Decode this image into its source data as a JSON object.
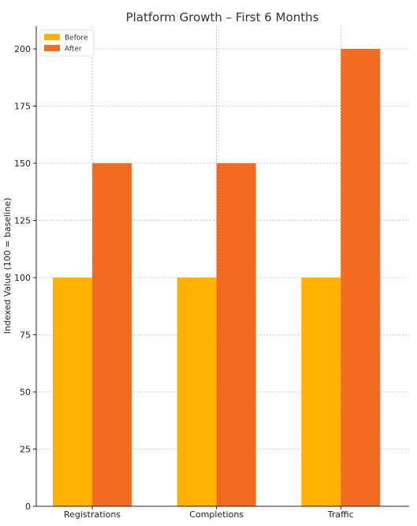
{
  "chart_data": {
    "type": "bar",
    "title": "Platform Growth – First 6 Months",
    "xlabel": "",
    "ylabel": "Indexed Value (100 = baseline)",
    "categories": [
      "Registrations",
      "Completions",
      "Traffic"
    ],
    "series": [
      {
        "name": "Before",
        "values": [
          100,
          100,
          100
        ],
        "color": "#FFB000"
      },
      {
        "name": "After",
        "values": [
          150,
          150,
          200
        ],
        "color": "#F26B21"
      }
    ],
    "ylim": [
      0,
      210
    ],
    "yticks": [
      0,
      25,
      50,
      75,
      100,
      125,
      150,
      175,
      200
    ],
    "grid": true,
    "legend_position": "top-left"
  }
}
